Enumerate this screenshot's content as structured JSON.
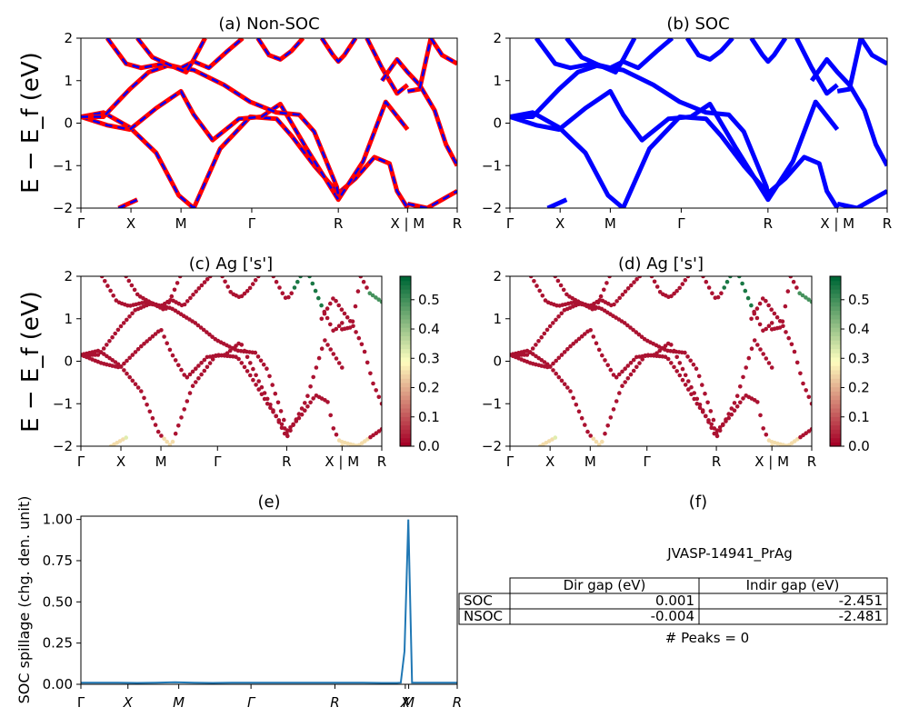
{
  "figure": {
    "ylabel_band": "E − E_f (eV)",
    "ylabel_spillage": "SOC spillage (chg. den. unit)",
    "kpath_labels": [
      "Γ",
      "X",
      "M",
      "Γ",
      "R",
      "X | M",
      "R"
    ],
    "spillage_kpath_labels": [
      "Γ",
      "X",
      "M",
      "Γ",
      "R",
      "X",
      "M",
      "R"
    ],
    "yticks_band": [
      "2",
      "1",
      "0",
      "−1",
      "−2"
    ],
    "colorbar_ticks": [
      "0.5",
      "0.4",
      "0.3",
      "0.2",
      "0.1",
      "0.0"
    ],
    "spillage_yticks": [
      "1.00",
      "0.75",
      "0.50",
      "0.25",
      "0.00"
    ]
  },
  "colors": {
    "nsoc_band": "#ff0000",
    "soc_band": "#0000ff",
    "spillage_line": "#1f77b4",
    "cmap_low": "#a50026",
    "cmap_mid": "#ffffbf",
    "cmap_high": "#006837"
  },
  "chart_data": [
    {
      "id": "a",
      "type": "line",
      "title": "(a) Non-SOC",
      "ylabel": "E − E_f (eV)",
      "ylim": [
        -2,
        2
      ],
      "xlim": [
        0,
        1
      ],
      "kpoints": [
        {
          "label": "Γ",
          "x": 0.0
        },
        {
          "label": "X",
          "x": 0.133
        },
        {
          "label": "M",
          "x": 0.266
        },
        {
          "label": "Γ",
          "x": 0.454
        },
        {
          "label": "R",
          "x": 0.684
        },
        {
          "label": "X | M",
          "x": 0.868
        },
        {
          "label": "R",
          "x": 1.0
        }
      ],
      "series": [
        {
          "name": "b1",
          "x": [
            0,
            0.06,
            0.13,
            0.2,
            0.26,
            0.3,
            0.37,
            0.45,
            0.52,
            0.56,
            0.62,
            0.684,
            0.73,
            0.78,
            0.82,
            0.84,
            0.868
          ],
          "y": [
            0.15,
            0.25,
            -0.1,
            -0.7,
            -1.7,
            -2.0,
            -0.6,
            0.15,
            0.1,
            -0.3,
            -1.0,
            -1.65,
            -1.3,
            -0.8,
            -0.95,
            -1.6,
            -2.0
          ]
        },
        {
          "name": "b2",
          "x": [
            0,
            0.07,
            0.13,
            0.2,
            0.266,
            0.3,
            0.35,
            0.42,
            0.48,
            0.53,
            0.6,
            0.684,
            0.75,
            0.81,
            0.868
          ],
          "y": [
            0.15,
            -0.05,
            -0.15,
            0.35,
            0.75,
            0.2,
            -0.4,
            0.1,
            0.15,
            0.45,
            -0.6,
            -1.8,
            -0.9,
            0.5,
            -0.15
          ]
        },
        {
          "name": "b3",
          "x": [
            0,
            0.06,
            0.13,
            0.18,
            0.23,
            0.3,
            0.38,
            0.45,
            0.52,
            0.58,
            0.62,
            0.68,
            0.684
          ],
          "y": [
            0.15,
            0.15,
            0.8,
            1.2,
            1.35,
            1.25,
            0.9,
            0.5,
            0.25,
            0.2,
            -0.2,
            -1.5,
            -1.7
          ]
        },
        {
          "name": "b4",
          "x": [
            0.07,
            0.12,
            0.16,
            0.22,
            0.266,
            0.3,
            0.34,
            0.39,
            0.43
          ],
          "y": [
            2.0,
            1.4,
            1.3,
            1.4,
            1.3,
            1.45,
            1.3,
            1.7,
            2.0
          ]
        },
        {
          "name": "b5",
          "x": [
            0.15,
            0.19,
            0.24,
            0.28,
            0.3,
            0.33
          ],
          "y": [
            2.0,
            1.55,
            1.35,
            1.2,
            1.5,
            2.0
          ]
        },
        {
          "name": "b6",
          "x": [
            0.47,
            0.5,
            0.53,
            0.56,
            0.59
          ],
          "y": [
            2.0,
            1.6,
            1.5,
            1.7,
            2.0
          ]
        },
        {
          "name": "b7",
          "x": [
            0.64,
            0.67,
            0.684,
            0.7,
            0.73
          ],
          "y": [
            2.0,
            1.6,
            1.45,
            1.6,
            2.0
          ]
        },
        {
          "name": "b8",
          "x": [
            0.76,
            0.8,
            0.84,
            0.868
          ],
          "y": [
            2.0,
            1.3,
            0.7,
            0.9
          ]
        },
        {
          "name": "b9",
          "x": [
            0.8,
            0.84,
            0.868,
            0.9,
            0.94,
            0.97,
            1.0
          ],
          "y": [
            1.0,
            1.5,
            1.2,
            0.9,
            0.3,
            -0.5,
            -1.0
          ]
        },
        {
          "name": "b10",
          "x": [
            0.868,
            0.9,
            0.93
          ],
          "y": [
            0.75,
            0.8,
            2.0
          ]
        },
        {
          "name": "b11",
          "x": [
            0.93,
            0.96,
            1.0
          ],
          "y": [
            2.0,
            1.6,
            1.4
          ]
        },
        {
          "name": "b12",
          "x": [
            0.868,
            0.92,
            0.96,
            1.0
          ],
          "y": [
            -1.9,
            -2.0,
            -1.8,
            -1.6
          ]
        },
        {
          "name": "b13",
          "x": [
            0.1,
            0.15
          ],
          "y": [
            -2.0,
            -1.8
          ]
        }
      ]
    },
    {
      "id": "b",
      "type": "line",
      "title": "(b) SOC",
      "ylim": [
        -2,
        2
      ],
      "xlim": [
        0,
        1
      ],
      "kpoints": [
        {
          "label": "Γ",
          "x": 0.0
        },
        {
          "label": "X",
          "x": 0.133
        },
        {
          "label": "M",
          "x": 0.266
        },
        {
          "label": "Γ",
          "x": 0.454
        },
        {
          "label": "R",
          "x": 0.684
        },
        {
          "label": "X | M",
          "x": 0.868
        },
        {
          "label": "R",
          "x": 1.0
        }
      ]
    },
    {
      "id": "c",
      "type": "scatter",
      "title": "(c)  Ag ['s']",
      "ylabel": "E − E_f (eV)",
      "ylim": [
        -2,
        2
      ],
      "colorbar_range": [
        0,
        0.58
      ],
      "kpoints": [
        {
          "label": "Γ",
          "x": 0.0
        },
        {
          "label": "X",
          "x": 0.133
        },
        {
          "label": "M",
          "x": 0.266
        },
        {
          "label": "Γ",
          "x": 0.454
        },
        {
          "label": "R",
          "x": 0.684
        },
        {
          "label": "X | M",
          "x": 0.868
        },
        {
          "label": "R",
          "x": 1.0
        }
      ]
    },
    {
      "id": "d",
      "type": "scatter",
      "title": "(d) Ag ['s']",
      "ylim": [
        -2,
        2
      ],
      "colorbar_range": [
        0,
        0.58
      ],
      "kpoints": [
        {
          "label": "Γ",
          "x": 0.0
        },
        {
          "label": "X",
          "x": 0.133
        },
        {
          "label": "M",
          "x": 0.266
        },
        {
          "label": "Γ",
          "x": 0.454
        },
        {
          "label": "R",
          "x": 0.684
        },
        {
          "label": "X | M",
          "x": 0.868
        },
        {
          "label": "R",
          "x": 1.0
        }
      ]
    },
    {
      "id": "e",
      "type": "line",
      "title": "(e)",
      "ylabel": "SOC spillage (chg. den. unit)",
      "ylim": [
        0,
        1.02
      ],
      "x": [
        0,
        0.05,
        0.1,
        0.15,
        0.2,
        0.25,
        0.3,
        0.35,
        0.4,
        0.45,
        0.5,
        0.55,
        0.6,
        0.65,
        0.7,
        0.75,
        0.8,
        0.84,
        0.85,
        0.86,
        0.87,
        0.88,
        0.9,
        0.95,
        1.0
      ],
      "y": [
        0.01,
        0.01,
        0.01,
        0.008,
        0.01,
        0.012,
        0.01,
        0.008,
        0.01,
        0.01,
        0.01,
        0.01,
        0.01,
        0.01,
        0.01,
        0.01,
        0.008,
        0.008,
        0.01,
        0.2,
        1.0,
        0.01,
        0.01,
        0.01,
        0.01
      ]
    },
    {
      "id": "f",
      "type": "table",
      "title": "(f)",
      "material": "JVASP-14941_PrAg",
      "columns": [
        "Dir gap (eV)",
        "Indir gap (eV)"
      ],
      "rows": [
        {
          "label": "SOC",
          "values": [
            "0.001",
            "-2.451"
          ]
        },
        {
          "label": "NSOC",
          "values": [
            "-0.004",
            "-2.481"
          ]
        }
      ],
      "peaks_text": "# Peaks = 0"
    }
  ]
}
